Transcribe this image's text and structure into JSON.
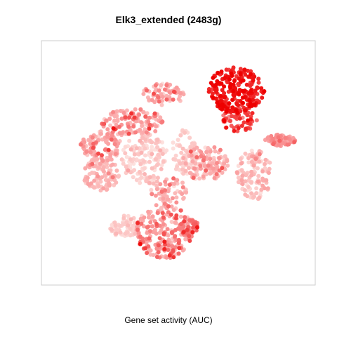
{
  "chart_data": {
    "type": "scatter",
    "title": "Elk3_extended (2483g)",
    "xlabel": "Gene set activity (AUC)",
    "ylabel": "",
    "grid": false,
    "legend": "none",
    "color_scale": {
      "low": "#fde0dd",
      "mid": "#fa9fa0",
      "high": "#ee0000"
    },
    "note_values": "x/y are unitless embedding coordinates (no axis ticks shown); value = relative AUC activity 0-1",
    "xlim": [
      0,
      100
    ],
    "ylim": [
      0,
      100
    ],
    "clusters": [
      {
        "cx": 72,
        "cy": 82,
        "rx": 11,
        "ry": 10,
        "n": 230,
        "value": 0.92,
        "spread": 0.08
      },
      {
        "cx": 73,
        "cy": 69,
        "rx": 7,
        "ry": 5,
        "n": 60,
        "value": 0.78,
        "spread": 0.12
      },
      {
        "cx": 32,
        "cy": 68,
        "rx": 12,
        "ry": 6,
        "n": 130,
        "value": 0.45,
        "spread": 0.18
      },
      {
        "cx": 44,
        "cy": 80,
        "rx": 8,
        "ry": 5,
        "n": 70,
        "value": 0.38,
        "spread": 0.18
      },
      {
        "cx": 20,
        "cy": 57,
        "rx": 8,
        "ry": 7,
        "n": 110,
        "value": 0.42,
        "spread": 0.16
      },
      {
        "cx": 20,
        "cy": 45,
        "rx": 7,
        "ry": 7,
        "n": 100,
        "value": 0.3,
        "spread": 0.14
      },
      {
        "cx": 37,
        "cy": 52,
        "rx": 9,
        "ry": 11,
        "n": 150,
        "value": 0.12,
        "spread": 0.12
      },
      {
        "cx": 52,
        "cy": 55,
        "rx": 5,
        "ry": 10,
        "n": 60,
        "value": 0.1,
        "spread": 0.1
      },
      {
        "cx": 60,
        "cy": 50,
        "rx": 9,
        "ry": 8,
        "n": 140,
        "value": 0.3,
        "spread": 0.18
      },
      {
        "cx": 79,
        "cy": 45,
        "rx": 7,
        "ry": 11,
        "n": 120,
        "value": 0.25,
        "spread": 0.16
      },
      {
        "cx": 89,
        "cy": 60,
        "rx": 6,
        "ry": 2.5,
        "n": 70,
        "value": 0.5,
        "spread": 0.1
      },
      {
        "cx": 46,
        "cy": 38,
        "rx": 7,
        "ry": 6,
        "n": 60,
        "value": 0.38,
        "spread": 0.16
      },
      {
        "cx": 29,
        "cy": 22,
        "rx": 6,
        "ry": 5,
        "n": 70,
        "value": 0.12,
        "spread": 0.1
      },
      {
        "cx": 44,
        "cy": 20,
        "rx": 11,
        "ry": 12,
        "n": 230,
        "value": 0.48,
        "spread": 0.18
      },
      {
        "cx": 54,
        "cy": 21,
        "rx": 4,
        "ry": 5,
        "n": 45,
        "value": 0.62,
        "spread": 0.12
      }
    ]
  }
}
